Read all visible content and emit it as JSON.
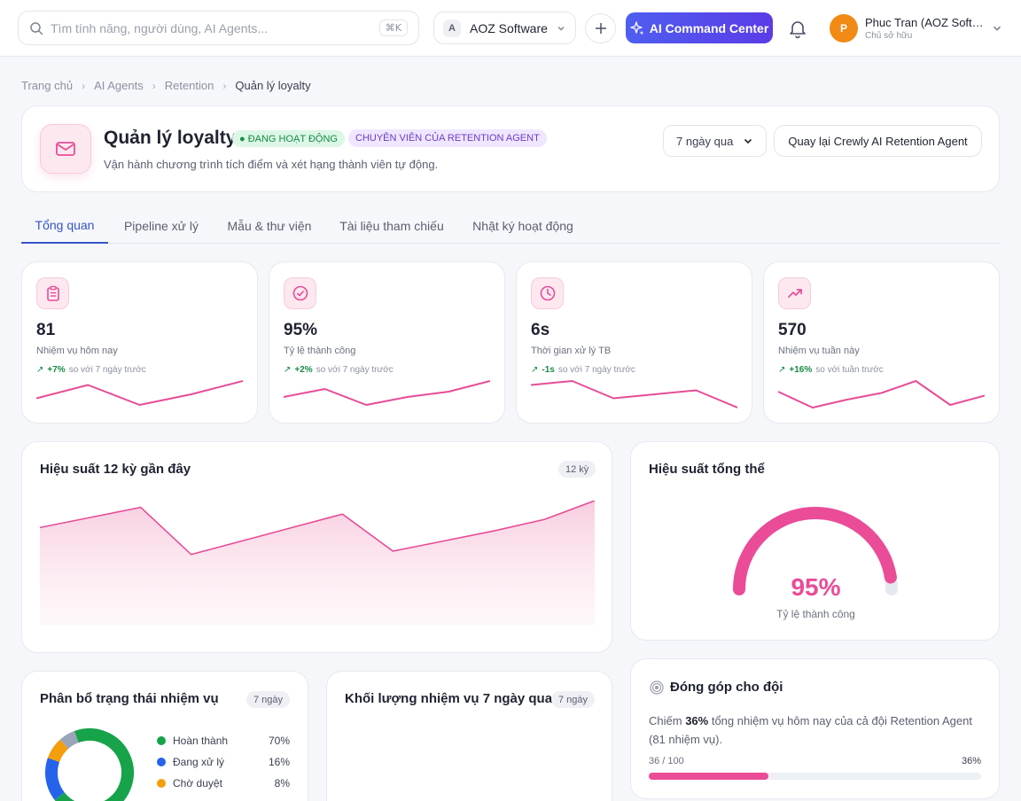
{
  "topbar": {
    "search_placeholder": "Tìm tính năng, người dùng, AI Agents...",
    "search_shortcut": "⌘K",
    "workspace_badge": "A",
    "workspace_name": "AOZ Software",
    "ai_button_label": "AI Command Center",
    "user_initial": "P",
    "user_name": "Phuc Tran (AOZ Software)",
    "user_role": "Chủ sở hữu"
  },
  "breadcrumb": [
    "Trang chủ",
    "AI Agents",
    "Retention",
    "Quản lý loyalty"
  ],
  "header": {
    "title": "Quản lý loyalty",
    "status_badge": "● ĐANG HOẠT ĐỘNG",
    "role_badge": "CHUYÊN VIÊN CỦA RETENTION AGENT",
    "subtitle": "Vận hành chương trình tích điểm và xét hạng thành viên tự động.",
    "range_value": "7 ngày qua",
    "back_button": "Quay lại Crewly AI Retention Agent"
  },
  "tabs": [
    {
      "label": "Tổng quan",
      "active": true
    },
    {
      "label": "Pipeline xử lý",
      "active": false
    },
    {
      "label": "Mẫu & thư viện",
      "active": false
    },
    {
      "label": "Tài liệu tham chiếu",
      "active": false
    },
    {
      "label": "Nhật ký hoạt động",
      "active": false
    }
  ],
  "kpis": [
    {
      "icon": "clipboard-icon",
      "value": "81",
      "label": "Nhiệm vụ hôm nay",
      "delta": "+7%",
      "compare": "so với 7 ngày trước",
      "spark": [
        0.35,
        0.85,
        0.1,
        0.5,
        1.0
      ]
    },
    {
      "icon": "check-circle-icon",
      "value": "95%",
      "label": "Tỷ lệ thành công",
      "delta": "+2%",
      "compare": "so với 7 ngày trước",
      "spark": [
        0.4,
        0.7,
        0.1,
        0.4,
        0.6,
        1.0
      ]
    },
    {
      "icon": "clock-icon",
      "value": "6s",
      "label": "Thời gian xử lý TB",
      "delta": "-1s",
      "compare": "so với 7 ngày trước",
      "spark": [
        0.85,
        1.0,
        0.35,
        0.5,
        0.65,
        0.0
      ]
    },
    {
      "icon": "trending-up-icon",
      "value": "570",
      "label": "Nhiệm vụ tuần này",
      "delta": "+16%",
      "compare": "so với tuần trước",
      "spark": [
        0.6,
        0.0,
        0.3,
        0.55,
        1.0,
        0.1,
        0.45
      ]
    }
  ],
  "performance": {
    "title": "Hiệu suất 12 kỳ gần đây",
    "chip": "12 kỳ",
    "chart_data": {
      "type": "area",
      "values": [
        0.6,
        0.75,
        0.9,
        0.2,
        0.4,
        0.6,
        0.8,
        0.25,
        0.4,
        0.55,
        0.72,
        1.0
      ],
      "color": "#e64d96"
    }
  },
  "overall": {
    "title": "Hiệu suất tổng thể",
    "value": "95%",
    "fraction": 0.95,
    "label": "Tỷ lệ thành công",
    "color": "#ea4c97"
  },
  "distribution": {
    "title": "Phân bổ trạng thái nhiệm vụ",
    "chip": "7 ngày",
    "chart_data": {
      "type": "pie",
      "series": [
        {
          "name": "Hoàn thành",
          "value": 70,
          "label": "70%",
          "color": "#16a34a"
        },
        {
          "name": "Đang xử lý",
          "value": 16,
          "label": "16%",
          "color": "#2563eb"
        },
        {
          "name": "Chờ duyệt",
          "value": 8,
          "label": "8%",
          "color": "#f59e0b"
        },
        {
          "name": "",
          "value": 6,
          "label": "",
          "color": "#9aa5b8"
        }
      ]
    }
  },
  "volume": {
    "title": "Khối lượng nhiệm vụ 7 ngày qua",
    "chip": "7 ngày"
  },
  "contribution": {
    "title": "Đóng góp cho đội",
    "text_prefix": "Chiếm ",
    "text_bold": "36%",
    "text_suffix": " tổng nhiệm vụ hôm nay của cả đội Retention Agent (81 nhiệm vụ).",
    "progress_label": "36 / 100",
    "progress_percent": "36%",
    "progress": 0.36,
    "color": "#ea4c97"
  }
}
